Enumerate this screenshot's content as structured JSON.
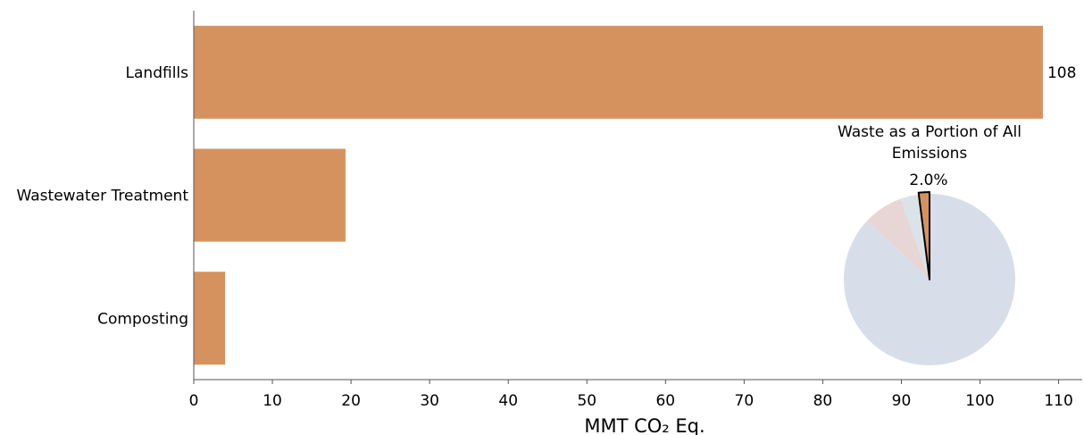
{
  "chart_data": [
    {
      "type": "bar",
      "orientation": "horizontal",
      "categories": [
        "Landfills",
        "Wastewater Treatment",
        "Composting"
      ],
      "values": [
        108,
        19.3,
        4
      ],
      "value_labels": [
        "108",
        "",
        ""
      ],
      "xlabel": "MMT CO₂ Eq.",
      "xlim": [
        0,
        113
      ],
      "xticks": [
        0,
        10,
        20,
        30,
        40,
        50,
        60,
        70,
        80,
        90,
        100,
        110
      ],
      "grid": false,
      "bar_color": "#D6925E"
    },
    {
      "type": "pie",
      "title": "Waste as a Portion of All Emissions",
      "slices": [
        {
          "value": 2.0,
          "label": "2.0%",
          "color": "#D6925E",
          "highlight": true
        },
        {
          "value": 3.5,
          "label": "",
          "color": "#D9E3E8"
        },
        {
          "value": 7.5,
          "label": "",
          "color": "#E8D6D6"
        },
        {
          "value": 87.0,
          "label": "",
          "color": "#D7DEE9"
        }
      ]
    }
  ]
}
